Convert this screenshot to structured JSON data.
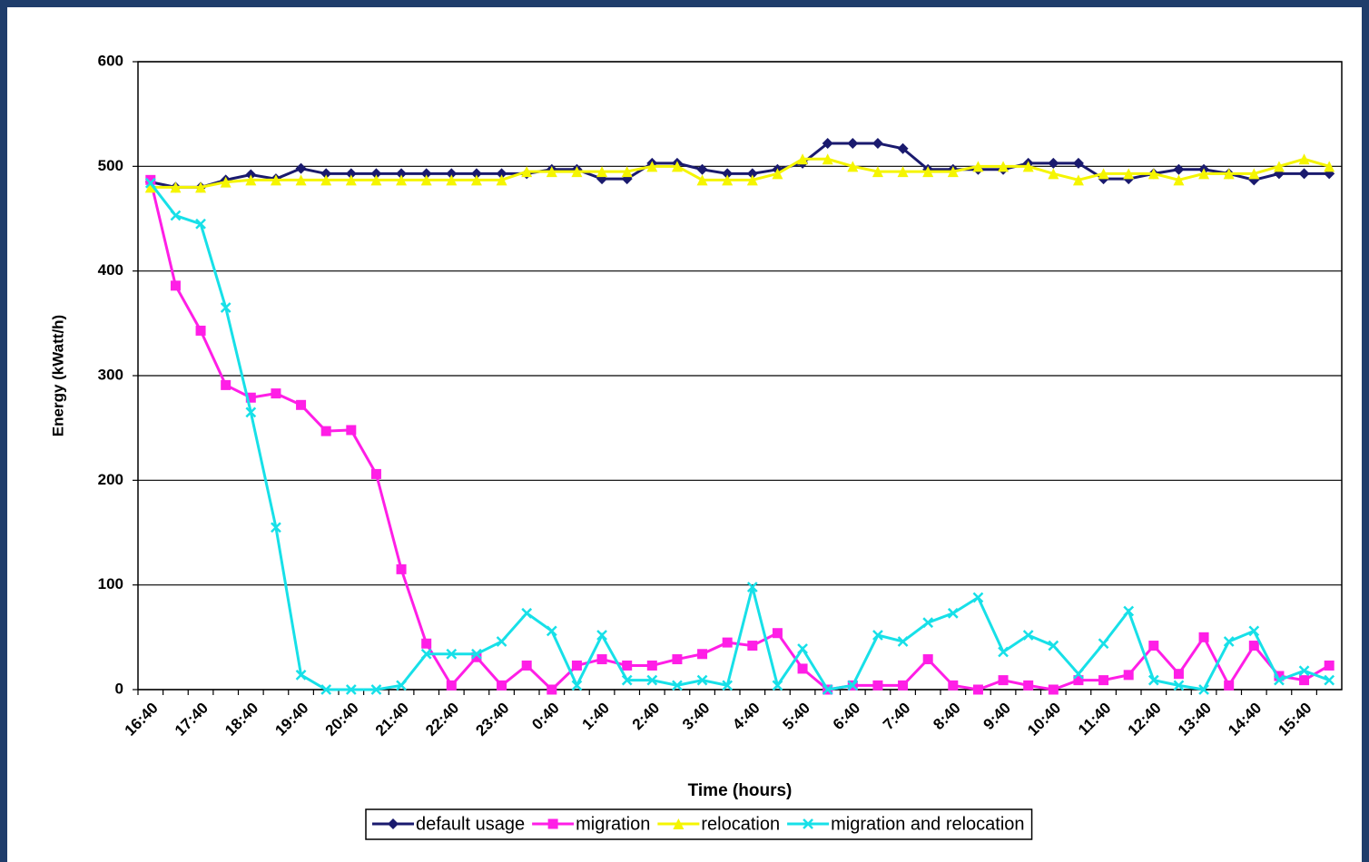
{
  "chart_data": {
    "type": "line",
    "x_label": "Time (hours)",
    "y_label": "Energy (kWatt/h)",
    "categories": [
      "16:40",
      null,
      "17:40",
      null,
      "18:40",
      null,
      "19:40",
      null,
      "20:40",
      null,
      "21:40",
      null,
      "22:40",
      null,
      "23:40",
      null,
      "0:40",
      null,
      "1:40",
      null,
      "2:40",
      null,
      "3:40",
      null,
      "4:40",
      null,
      "5:40",
      null,
      "6:40",
      null,
      "7:40",
      null,
      "8:40",
      null,
      "9:40",
      null,
      "10:40",
      null,
      "11:40",
      null,
      "12:40",
      null,
      "13:40",
      null,
      "14:40",
      null,
      "15:40",
      null
    ],
    "ylim": [
      0,
      600
    ],
    "yticks": [
      0,
      100,
      200,
      300,
      400,
      500,
      600
    ],
    "grid": true,
    "legend": "bottom",
    "series": [
      {
        "name": "default usage",
        "color": "#1a1a6e",
        "marker": "diamond",
        "values": [
          485,
          480,
          480,
          487,
          492,
          488,
          498,
          493,
          493,
          493,
          493,
          493,
          493,
          493,
          493,
          493,
          497,
          497,
          488,
          488,
          503,
          503,
          497,
          493,
          493,
          497,
          503,
          522,
          522,
          522,
          517,
          497,
          497,
          497,
          497,
          503,
          503,
          503,
          488,
          488,
          493,
          497,
          497,
          493,
          487,
          493,
          493,
          493
        ]
      },
      {
        "name": "migration",
        "color": "#ff1ee6",
        "marker": "square",
        "values": [
          487,
          386,
          343,
          291,
          279,
          283,
          272,
          247,
          248,
          206,
          115,
          44,
          4,
          31,
          4,
          23,
          0,
          23,
          29,
          23,
          23,
          29,
          34,
          45,
          42,
          54,
          20,
          0,
          4,
          4,
          4,
          29,
          4,
          0,
          9,
          4,
          0,
          9,
          9,
          14,
          42,
          15,
          50,
          4,
          42,
          13,
          9,
          23
        ]
      },
      {
        "name": "relocation",
        "color": "#f5f500",
        "marker": "triangle",
        "values": [
          480,
          480,
          480,
          485,
          487,
          487,
          487,
          487,
          487,
          487,
          487,
          487,
          487,
          487,
          487,
          495,
          495,
          495,
          495,
          495,
          500,
          500,
          487,
          487,
          487,
          493,
          507,
          507,
          500,
          495,
          495,
          495,
          495,
          500,
          500,
          500,
          493,
          487,
          493,
          493,
          493,
          487,
          493,
          493,
          493,
          500,
          507,
          500
        ]
      },
      {
        "name": "migration and relocation",
        "color": "#17e0e8",
        "marker": "x",
        "values": [
          484,
          453,
          445,
          365,
          265,
          155,
          14,
          0,
          0,
          0,
          4,
          34,
          34,
          34,
          46,
          73,
          56,
          4,
          52,
          9,
          9,
          4,
          9,
          4,
          98,
          4,
          39,
          0,
          4,
          52,
          46,
          64,
          73,
          88,
          36,
          52,
          42,
          15,
          44,
          75,
          9,
          4,
          0,
          46,
          56,
          9,
          18,
          9
        ]
      }
    ]
  }
}
